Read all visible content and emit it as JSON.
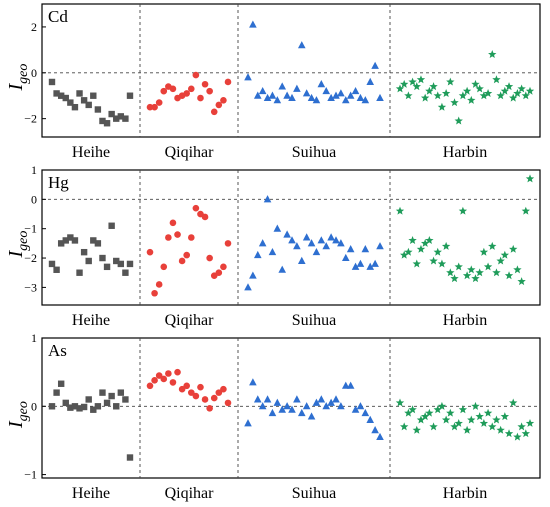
{
  "chart_data": [
    {
      "type": "scatter",
      "title": "Cd",
      "ylabel": "Igeo",
      "ylim": [
        -2.8,
        3.0
      ],
      "yticks": [
        2,
        0,
        -2
      ],
      "categories": [
        "Heihe",
        "Qiqihar",
        "Suihua",
        "Harbin"
      ],
      "series": [
        {
          "category": "Heihe",
          "color": "#555555",
          "marker": "square",
          "values": [
            -0.4,
            -0.9,
            -1.0,
            -1.1,
            -1.3,
            -1.5,
            -0.9,
            -1.2,
            -1.4,
            -1.0,
            -1.6,
            -2.1,
            -2.2,
            -1.8,
            -2.0,
            -1.9,
            -2.0,
            -1.0
          ]
        },
        {
          "category": "Qiqihar",
          "color": "#e8403a",
          "marker": "circle",
          "values": [
            -1.5,
            -1.5,
            -1.3,
            -0.8,
            -0.6,
            -0.7,
            -1.1,
            -1.0,
            -0.9,
            -0.7,
            -0.1,
            -1.1,
            -0.5,
            -0.8,
            -1.7,
            -1.4,
            -1.2,
            -0.4
          ]
        },
        {
          "category": "Suihua",
          "color": "#2e6fd0",
          "marker": "triangle",
          "values": [
            -0.2,
            2.1,
            -1.0,
            -0.8,
            -1.1,
            -1.0,
            -1.2,
            -0.6,
            -1.0,
            -1.1,
            -0.7,
            1.2,
            -0.9,
            -1.1,
            -1.2,
            -0.5,
            -0.8,
            -1.1,
            -1.0,
            -0.9,
            -1.2,
            -1.0,
            -0.8,
            -1.1,
            -1.2,
            -0.4,
            0.3,
            -1.1
          ]
        },
        {
          "category": "Harbin",
          "color": "#1f9c5a",
          "marker": "star",
          "values": [
            -0.7,
            -0.5,
            -1.0,
            -0.4,
            -0.6,
            -0.3,
            -1.1,
            -0.8,
            -0.6,
            -1.0,
            -1.5,
            -0.9,
            -0.4,
            -1.3,
            -2.1,
            -1.0,
            -0.8,
            -1.2,
            -0.5,
            -0.7,
            -1.0,
            -0.9,
            0.8,
            -0.3,
            -1.0,
            -0.8,
            -0.6,
            -1.1,
            -0.9,
            -0.7,
            -1.0,
            -0.8
          ]
        }
      ]
    },
    {
      "type": "scatter",
      "title": "Hg",
      "ylabel": "Igeo",
      "ylim": [
        -3.6,
        1.0
      ],
      "yticks": [
        1,
        0,
        -1,
        -2,
        -3
      ],
      "categories": [
        "Heihe",
        "Qiqihar",
        "Suihua",
        "Harbin"
      ],
      "series": [
        {
          "category": "Heihe",
          "color": "#555555",
          "marker": "square",
          "values": [
            -2.2,
            -2.4,
            -1.5,
            -1.4,
            -1.3,
            -1.4,
            -2.5,
            -1.8,
            -2.1,
            -1.4,
            -1.5,
            -2.0,
            -2.3,
            -0.9,
            -2.1,
            -2.2,
            -2.5,
            -2.2
          ]
        },
        {
          "category": "Qiqihar",
          "color": "#e8403a",
          "marker": "circle",
          "values": [
            -1.8,
            -3.2,
            -2.9,
            -2.3,
            -1.3,
            -0.8,
            -1.2,
            -2.1,
            -1.9,
            -1.3,
            -0.3,
            -0.5,
            -0.6,
            -2.0,
            -2.6,
            -2.5,
            -2.3,
            -1.5
          ]
        },
        {
          "category": "Suihua",
          "color": "#2e6fd0",
          "marker": "triangle",
          "values": [
            -3.0,
            -2.6,
            -1.9,
            -1.5,
            0.0,
            -1.8,
            -1.0,
            -2.4,
            -1.2,
            -1.4,
            -1.6,
            -2.1,
            -1.3,
            -1.5,
            -1.8,
            -1.4,
            -1.6,
            -1.3,
            -1.4,
            -1.5,
            -2.0,
            -1.7,
            -2.3,
            -2.2,
            -1.7,
            -2.3,
            -2.2,
            -1.6
          ]
        },
        {
          "category": "Harbin",
          "color": "#1f9c5a",
          "marker": "star",
          "values": [
            -0.4,
            -1.9,
            -1.8,
            -1.4,
            -2.2,
            -1.7,
            -1.5,
            -1.4,
            -2.1,
            -1.8,
            -2.2,
            -1.6,
            -2.5,
            -2.7,
            -2.3,
            -0.4,
            -2.6,
            -2.4,
            -2.7,
            -2.5,
            -1.8,
            -2.3,
            -1.6,
            -2.5,
            -2.1,
            -1.9,
            -2.6,
            -1.7,
            -2.4,
            -2.8,
            -0.4,
            0.7
          ]
        }
      ]
    },
    {
      "type": "scatter",
      "title": "As",
      "ylabel": "Igeo",
      "ylim": [
        -1.05,
        1.0
      ],
      "yticks": [
        1,
        0,
        -1
      ],
      "categories": [
        "Heihe",
        "Qiqihar",
        "Suihua",
        "Harbin"
      ],
      "series": [
        {
          "category": "Heihe",
          "color": "#555555",
          "marker": "square",
          "values": [
            0.0,
            0.2,
            0.33,
            0.05,
            -0.02,
            0.0,
            -0.03,
            -0.01,
            0.1,
            -0.05,
            0.0,
            0.2,
            0.05,
            0.15,
            0.0,
            0.2,
            0.1,
            -0.75
          ]
        },
        {
          "category": "Qiqihar",
          "color": "#e8403a",
          "marker": "circle",
          "values": [
            0.3,
            0.38,
            0.45,
            0.4,
            0.48,
            0.35,
            0.5,
            0.25,
            0.3,
            0.2,
            0.15,
            0.28,
            0.1,
            -0.03,
            0.12,
            0.2,
            0.25,
            0.05
          ]
        },
        {
          "category": "Suihua",
          "color": "#2e6fd0",
          "marker": "triangle",
          "values": [
            -0.25,
            0.35,
            0.1,
            0.0,
            0.1,
            -0.1,
            0.05,
            -0.05,
            0.0,
            -0.05,
            0.1,
            -0.1,
            0.0,
            -0.15,
            0.05,
            0.1,
            0.0,
            0.05,
            0.1,
            0.0,
            0.3,
            0.3,
            -0.05,
            0.0,
            -0.1,
            -0.2,
            -0.35,
            -0.45
          ]
        },
        {
          "category": "Harbin",
          "color": "#1f9c5a",
          "marker": "star",
          "values": [
            0.05,
            -0.3,
            -0.1,
            -0.05,
            -0.35,
            -0.2,
            -0.15,
            -0.1,
            -0.3,
            -0.05,
            0.0,
            -0.2,
            -0.1,
            -0.3,
            -0.25,
            -0.05,
            -0.35,
            -0.2,
            0.0,
            -0.15,
            -0.25,
            -0.1,
            -0.3,
            -0.2,
            -0.35,
            -0.15,
            -0.4,
            0.05,
            -0.45,
            -0.3,
            -0.4,
            -0.25
          ]
        }
      ]
    }
  ]
}
